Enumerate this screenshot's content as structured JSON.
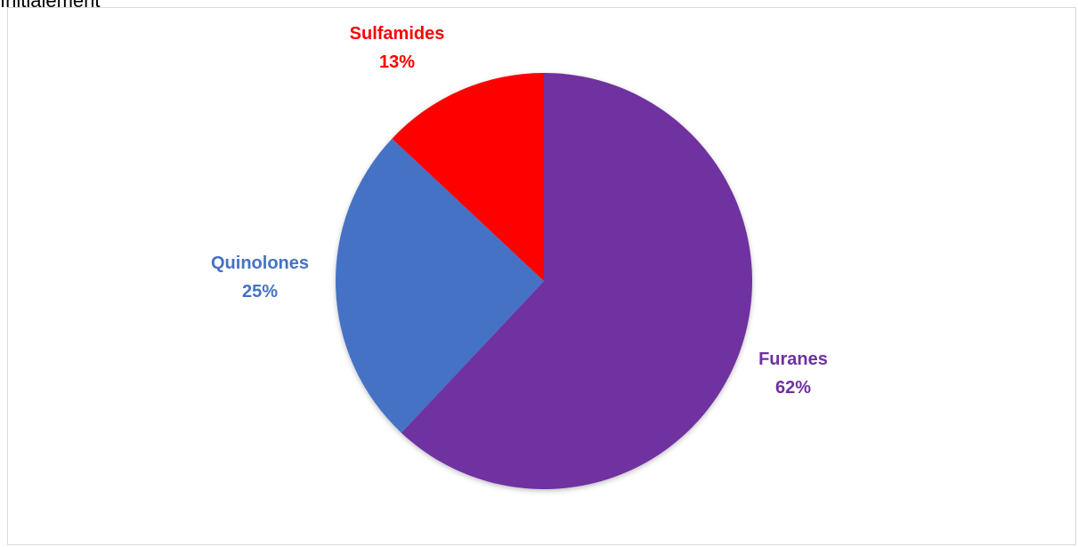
{
  "header": {
    "cut_text": "Initialement"
  },
  "chart_data": {
    "type": "pie",
    "title": "",
    "categories": [
      "Furanes",
      "Quinolones",
      "Sulfamides"
    ],
    "values": [
      62,
      25,
      13
    ],
    "percent_labels": [
      "62%",
      "25%",
      "13%"
    ],
    "colors": [
      "#7030a0",
      "#4472c4",
      "#ff0000"
    ],
    "start_angle_deg": 0,
    "direction": "clockwise",
    "legend": "none",
    "data_labels": "outside, category name and percentage"
  }
}
